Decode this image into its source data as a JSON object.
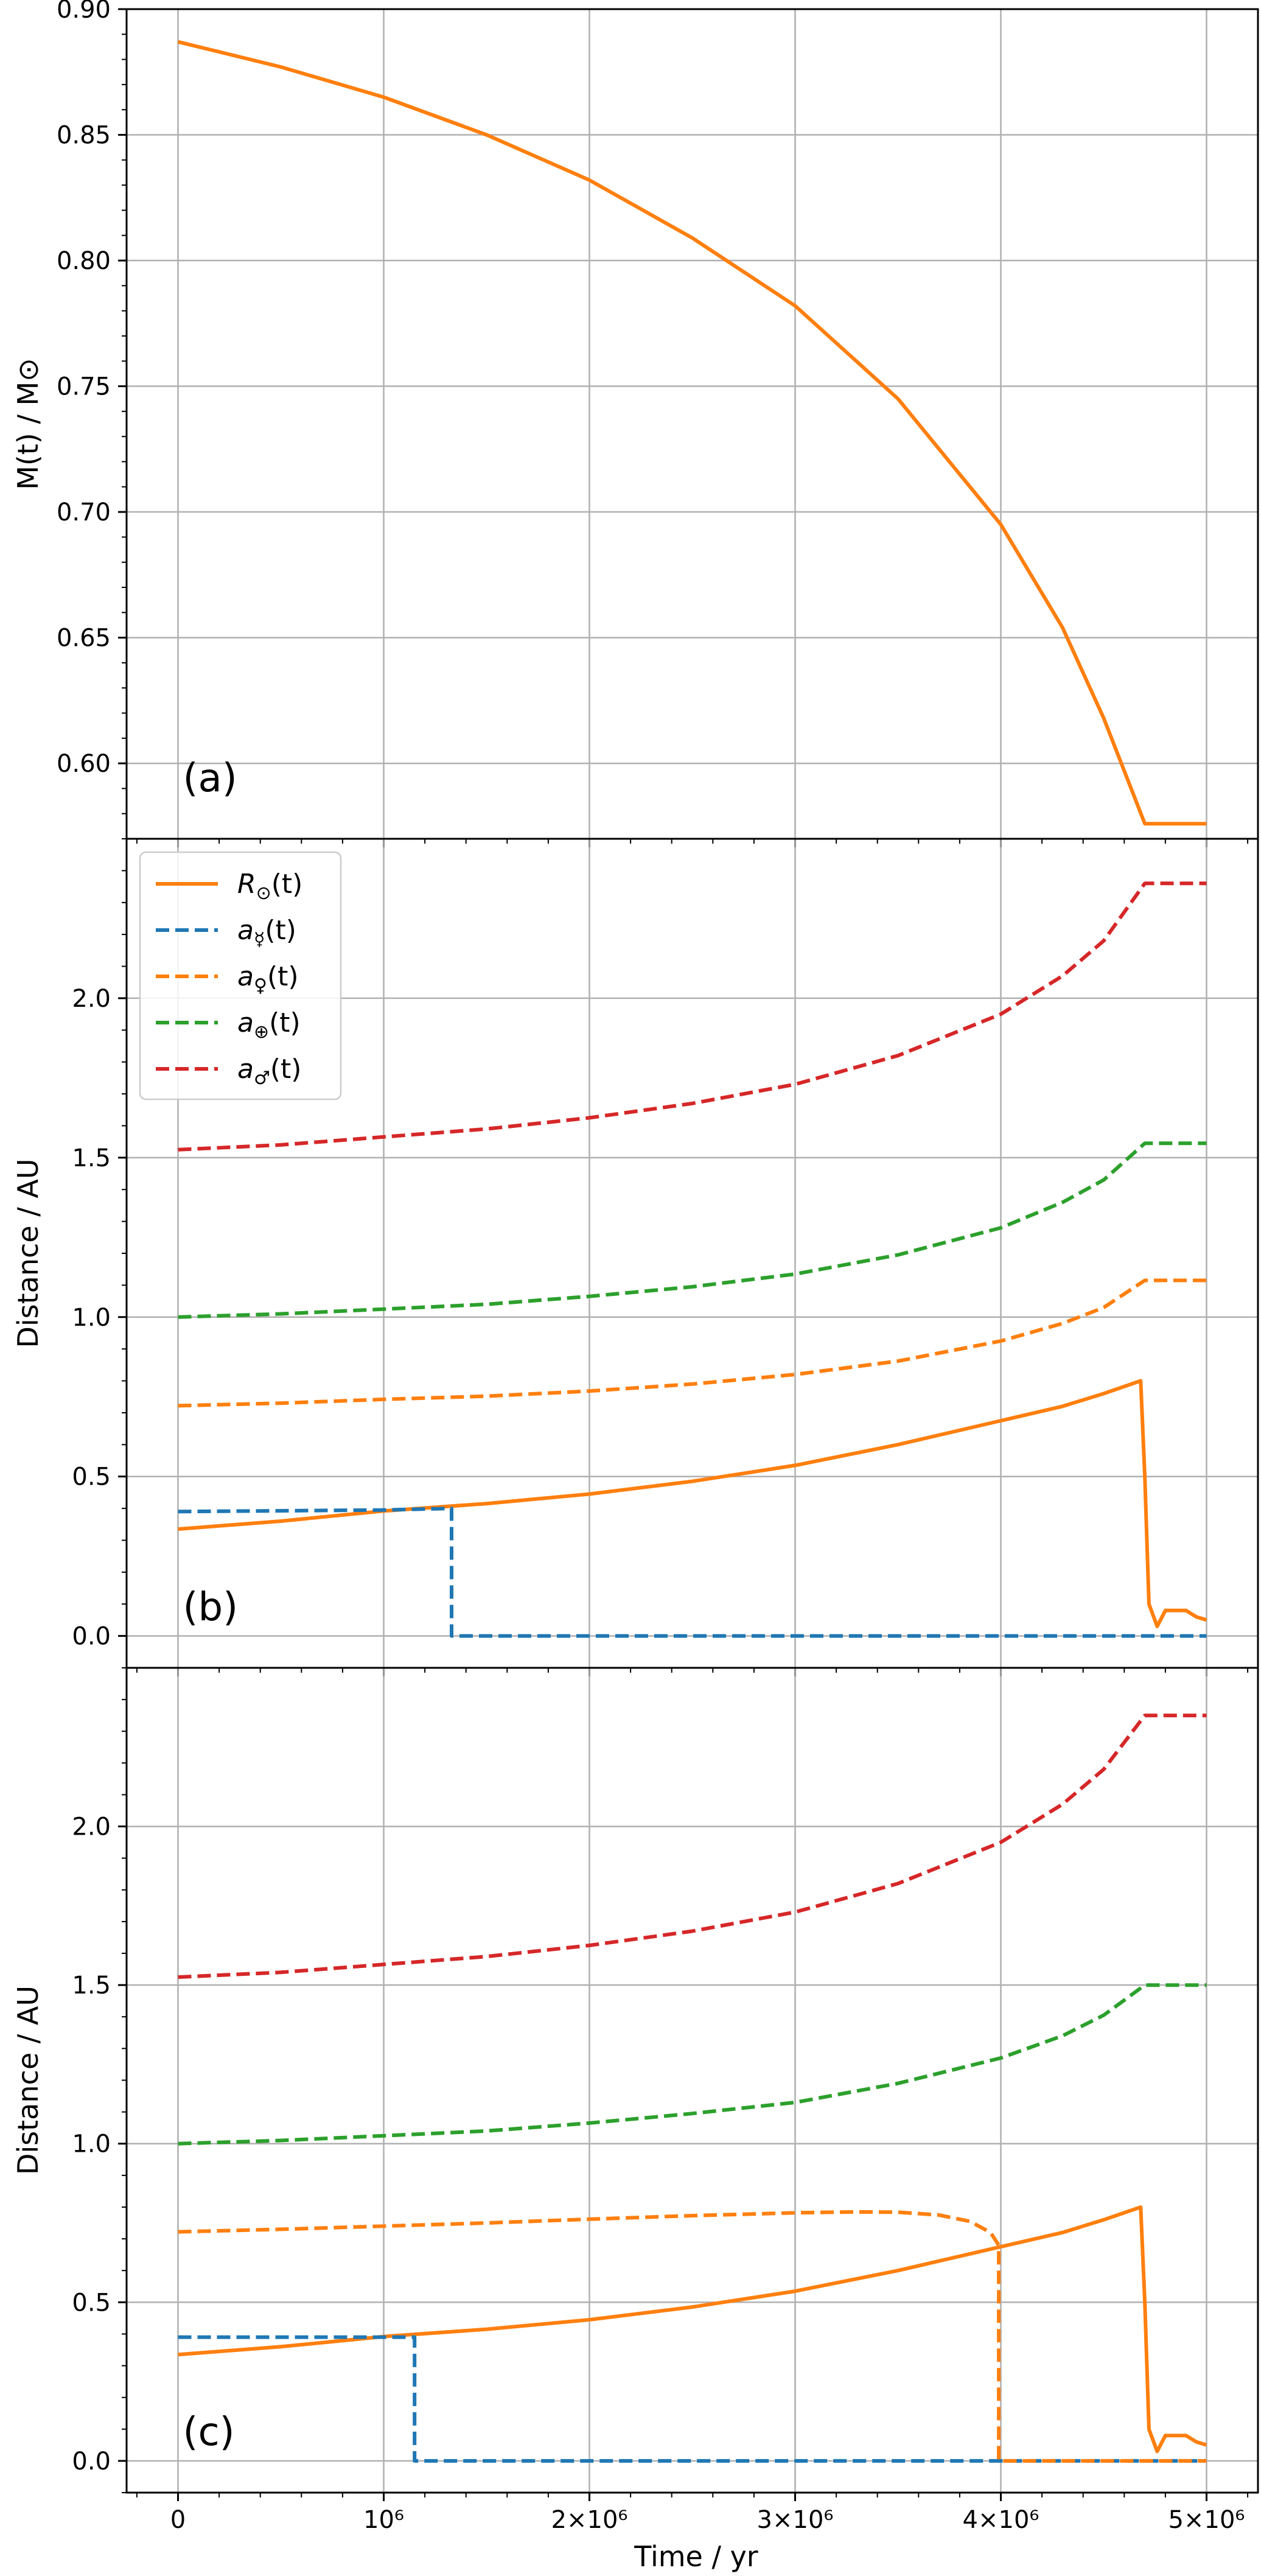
{
  "figure": {
    "xlabel": "Time / yr"
  },
  "chart_data": [
    {
      "type": "line",
      "panel_label": "(a)",
      "ylabel": "M(t) / M⊙",
      "xlim": [
        -250000,
        5250000
      ],
      "ylim": [
        0.57,
        0.9
      ],
      "x_ticks": [
        {
          "value": 0,
          "label": "0"
        },
        {
          "value": 1000000,
          "label": "10⁶"
        },
        {
          "value": 2000000,
          "label": "2×10⁶"
        },
        {
          "value": 3000000,
          "label": "3×10⁶"
        },
        {
          "value": 4000000,
          "label": "4×10⁶"
        },
        {
          "value": 5000000,
          "label": "5×10⁶"
        }
      ],
      "y_ticks": [
        {
          "value": 0.6,
          "label": "0.60"
        },
        {
          "value": 0.65,
          "label": "0.65"
        },
        {
          "value": 0.7,
          "label": "0.70"
        },
        {
          "value": 0.75,
          "label": "0.75"
        },
        {
          "value": 0.8,
          "label": "0.80"
        },
        {
          "value": 0.85,
          "label": "0.85"
        },
        {
          "value": 0.9,
          "label": "0.90"
        }
      ],
      "grid": true,
      "series": [
        {
          "color": "#ff7f0e",
          "dash": "solid",
          "x": [
            0,
            500000,
            1000000,
            1500000,
            2000000,
            2500000,
            3000000,
            3500000,
            4000000,
            4300000,
            4500000,
            4700000,
            4800000,
            5000000
          ],
          "y": [
            0.887,
            0.877,
            0.865,
            0.85,
            0.832,
            0.809,
            0.782,
            0.745,
            0.695,
            0.654,
            0.618,
            0.576,
            0.576,
            0.576
          ]
        }
      ]
    },
    {
      "type": "line",
      "panel_label": "(b)",
      "ylabel": "Distance / AU",
      "xlim": [
        -250000,
        5250000
      ],
      "ylim": [
        -0.1,
        2.5
      ],
      "x_ticks": [
        {
          "value": 0,
          "label": "0"
        },
        {
          "value": 1000000,
          "label": "10⁶"
        },
        {
          "value": 2000000,
          "label": "2×10⁶"
        },
        {
          "value": 3000000,
          "label": "3×10⁶"
        },
        {
          "value": 4000000,
          "label": "4×10⁶"
        },
        {
          "value": 5000000,
          "label": "5×10⁶"
        }
      ],
      "y_ticks": [
        {
          "value": 0.0,
          "label": "0.0"
        },
        {
          "value": 0.5,
          "label": "0.5"
        },
        {
          "value": 1.0,
          "label": "1.0"
        },
        {
          "value": 1.5,
          "label": "1.5"
        },
        {
          "value": 2.0,
          "label": "2.0"
        }
      ],
      "grid": true,
      "legend": {
        "placement": "upper-left",
        "entries": [
          {
            "main": "R",
            "sub": "⊙",
            "tail": "(t)",
            "color": "#ff7f0e",
            "dash": "solid"
          },
          {
            "main": "a",
            "sub": "☿",
            "tail": "(t)",
            "color": "#1f77b4",
            "dash": "dashed"
          },
          {
            "main": "a",
            "sub": "♀",
            "tail": "(t)",
            "color": "#ff7f0e",
            "dash": "dashed"
          },
          {
            "main": "a",
            "sub": "⊕",
            "tail": "(t)",
            "color": "#2ca02c",
            "dash": "dashed"
          },
          {
            "main": "a",
            "sub": "♂",
            "tail": "(t)",
            "color": "#d62728",
            "dash": "dashed"
          }
        ]
      },
      "series": [
        {
          "name": "R⊙(t)",
          "color": "#ff7f0e",
          "dash": "solid",
          "x": [
            0,
            500000,
            1000000,
            1500000,
            2000000,
            2500000,
            3000000,
            3500000,
            4000000,
            4300000,
            4500000,
            4680000,
            4700000,
            4720000,
            4760000,
            4800000,
            4900000,
            4950000,
            5000000
          ],
          "y": [
            0.335,
            0.36,
            0.392,
            0.415,
            0.445,
            0.485,
            0.535,
            0.6,
            0.675,
            0.72,
            0.76,
            0.8,
            0.5,
            0.1,
            0.03,
            0.08,
            0.08,
            0.06,
            0.05
          ]
        },
        {
          "name": "a☿(t)",
          "color": "#1f77b4",
          "dash": "dashed",
          "x": [
            0,
            1000000,
            1330000,
            1330000,
            5000000
          ],
          "y": [
            0.39,
            0.395,
            0.4,
            0.0,
            0.0
          ]
        },
        {
          "name": "a♀(t)",
          "color": "#ff7f0e",
          "dash": "dashed",
          "x": [
            0,
            500000,
            1000000,
            1500000,
            2000000,
            2500000,
            3000000,
            3500000,
            4000000,
            4300000,
            4500000,
            4700000,
            4800000,
            5000000
          ],
          "y": [
            0.722,
            0.73,
            0.742,
            0.752,
            0.768,
            0.79,
            0.82,
            0.862,
            0.925,
            0.98,
            1.03,
            1.115,
            1.115,
            1.115
          ]
        },
        {
          "name": "a⊕(t)",
          "color": "#2ca02c",
          "dash": "dashed",
          "x": [
            0,
            500000,
            1000000,
            1500000,
            2000000,
            2500000,
            3000000,
            3500000,
            4000000,
            4300000,
            4500000,
            4700000,
            4800000,
            5000000
          ],
          "y": [
            1.0,
            1.01,
            1.025,
            1.04,
            1.065,
            1.095,
            1.135,
            1.195,
            1.28,
            1.36,
            1.43,
            1.545,
            1.545,
            1.545
          ]
        },
        {
          "name": "a♂(t)",
          "color": "#d62728",
          "dash": "dashed",
          "x": [
            0,
            500000,
            1000000,
            1500000,
            2000000,
            2500000,
            3000000,
            3500000,
            4000000,
            4300000,
            4500000,
            4700000,
            4800000,
            5000000
          ],
          "y": [
            1.525,
            1.54,
            1.565,
            1.59,
            1.625,
            1.67,
            1.73,
            1.82,
            1.95,
            2.07,
            2.18,
            2.36,
            2.36,
            2.36
          ]
        }
      ]
    },
    {
      "type": "line",
      "panel_label": "(c)",
      "ylabel": "Distance / AU",
      "xlim": [
        -250000,
        5250000
      ],
      "ylim": [
        -0.1,
        2.5
      ],
      "x_ticks": [
        {
          "value": 0,
          "label": "0"
        },
        {
          "value": 1000000,
          "label": "10⁶"
        },
        {
          "value": 2000000,
          "label": "2×10⁶"
        },
        {
          "value": 3000000,
          "label": "3×10⁶"
        },
        {
          "value": 4000000,
          "label": "4×10⁶"
        },
        {
          "value": 5000000,
          "label": "5×10⁶"
        }
      ],
      "y_ticks": [
        {
          "value": 0.0,
          "label": "0.0"
        },
        {
          "value": 0.5,
          "label": "0.5"
        },
        {
          "value": 1.0,
          "label": "1.0"
        },
        {
          "value": 1.5,
          "label": "1.5"
        },
        {
          "value": 2.0,
          "label": "2.0"
        }
      ],
      "grid": true,
      "series": [
        {
          "name": "R⊙(t)",
          "color": "#ff7f0e",
          "dash": "solid",
          "x": [
            0,
            500000,
            1000000,
            1500000,
            2000000,
            2500000,
            3000000,
            3500000,
            4000000,
            4300000,
            4500000,
            4680000,
            4700000,
            4720000,
            4760000,
            4800000,
            4900000,
            4950000,
            5000000
          ],
          "y": [
            0.335,
            0.36,
            0.392,
            0.415,
            0.445,
            0.485,
            0.535,
            0.6,
            0.675,
            0.72,
            0.76,
            0.8,
            0.5,
            0.1,
            0.03,
            0.08,
            0.08,
            0.06,
            0.05
          ]
        },
        {
          "name": "a☿(t)",
          "color": "#1f77b4",
          "dash": "dashed",
          "x": [
            0,
            1000000,
            1150000,
            1150000,
            5000000
          ],
          "y": [
            0.39,
            0.39,
            0.39,
            0.0,
            0.0
          ]
        },
        {
          "name": "a♀(t)",
          "color": "#ff7f0e",
          "dash": "dashed",
          "x": [
            0,
            500000,
            1000000,
            1500000,
            2000000,
            2500000,
            3000000,
            3300000,
            3500000,
            3700000,
            3850000,
            3950000,
            3990000,
            3990000,
            5000000
          ],
          "y": [
            0.722,
            0.73,
            0.74,
            0.75,
            0.762,
            0.773,
            0.782,
            0.785,
            0.784,
            0.775,
            0.755,
            0.72,
            0.68,
            0.0,
            0.0
          ]
        },
        {
          "name": "a⊕(t)",
          "color": "#2ca02c",
          "dash": "dashed",
          "x": [
            0,
            500000,
            1000000,
            1500000,
            2000000,
            2500000,
            3000000,
            3500000,
            4000000,
            4300000,
            4500000,
            4700000,
            4800000,
            5000000
          ],
          "y": [
            1.0,
            1.01,
            1.025,
            1.04,
            1.065,
            1.095,
            1.13,
            1.19,
            1.27,
            1.34,
            1.405,
            1.5,
            1.5,
            1.5
          ]
        },
        {
          "name": "a♂(t)",
          "color": "#d62728",
          "dash": "dashed",
          "x": [
            0,
            500000,
            1000000,
            1500000,
            2000000,
            2500000,
            3000000,
            3500000,
            4000000,
            4300000,
            4500000,
            4700000,
            4800000,
            5000000
          ],
          "y": [
            1.525,
            1.54,
            1.565,
            1.59,
            1.625,
            1.67,
            1.73,
            1.82,
            1.95,
            2.07,
            2.18,
            2.35,
            2.35,
            2.35
          ]
        }
      ]
    }
  ]
}
